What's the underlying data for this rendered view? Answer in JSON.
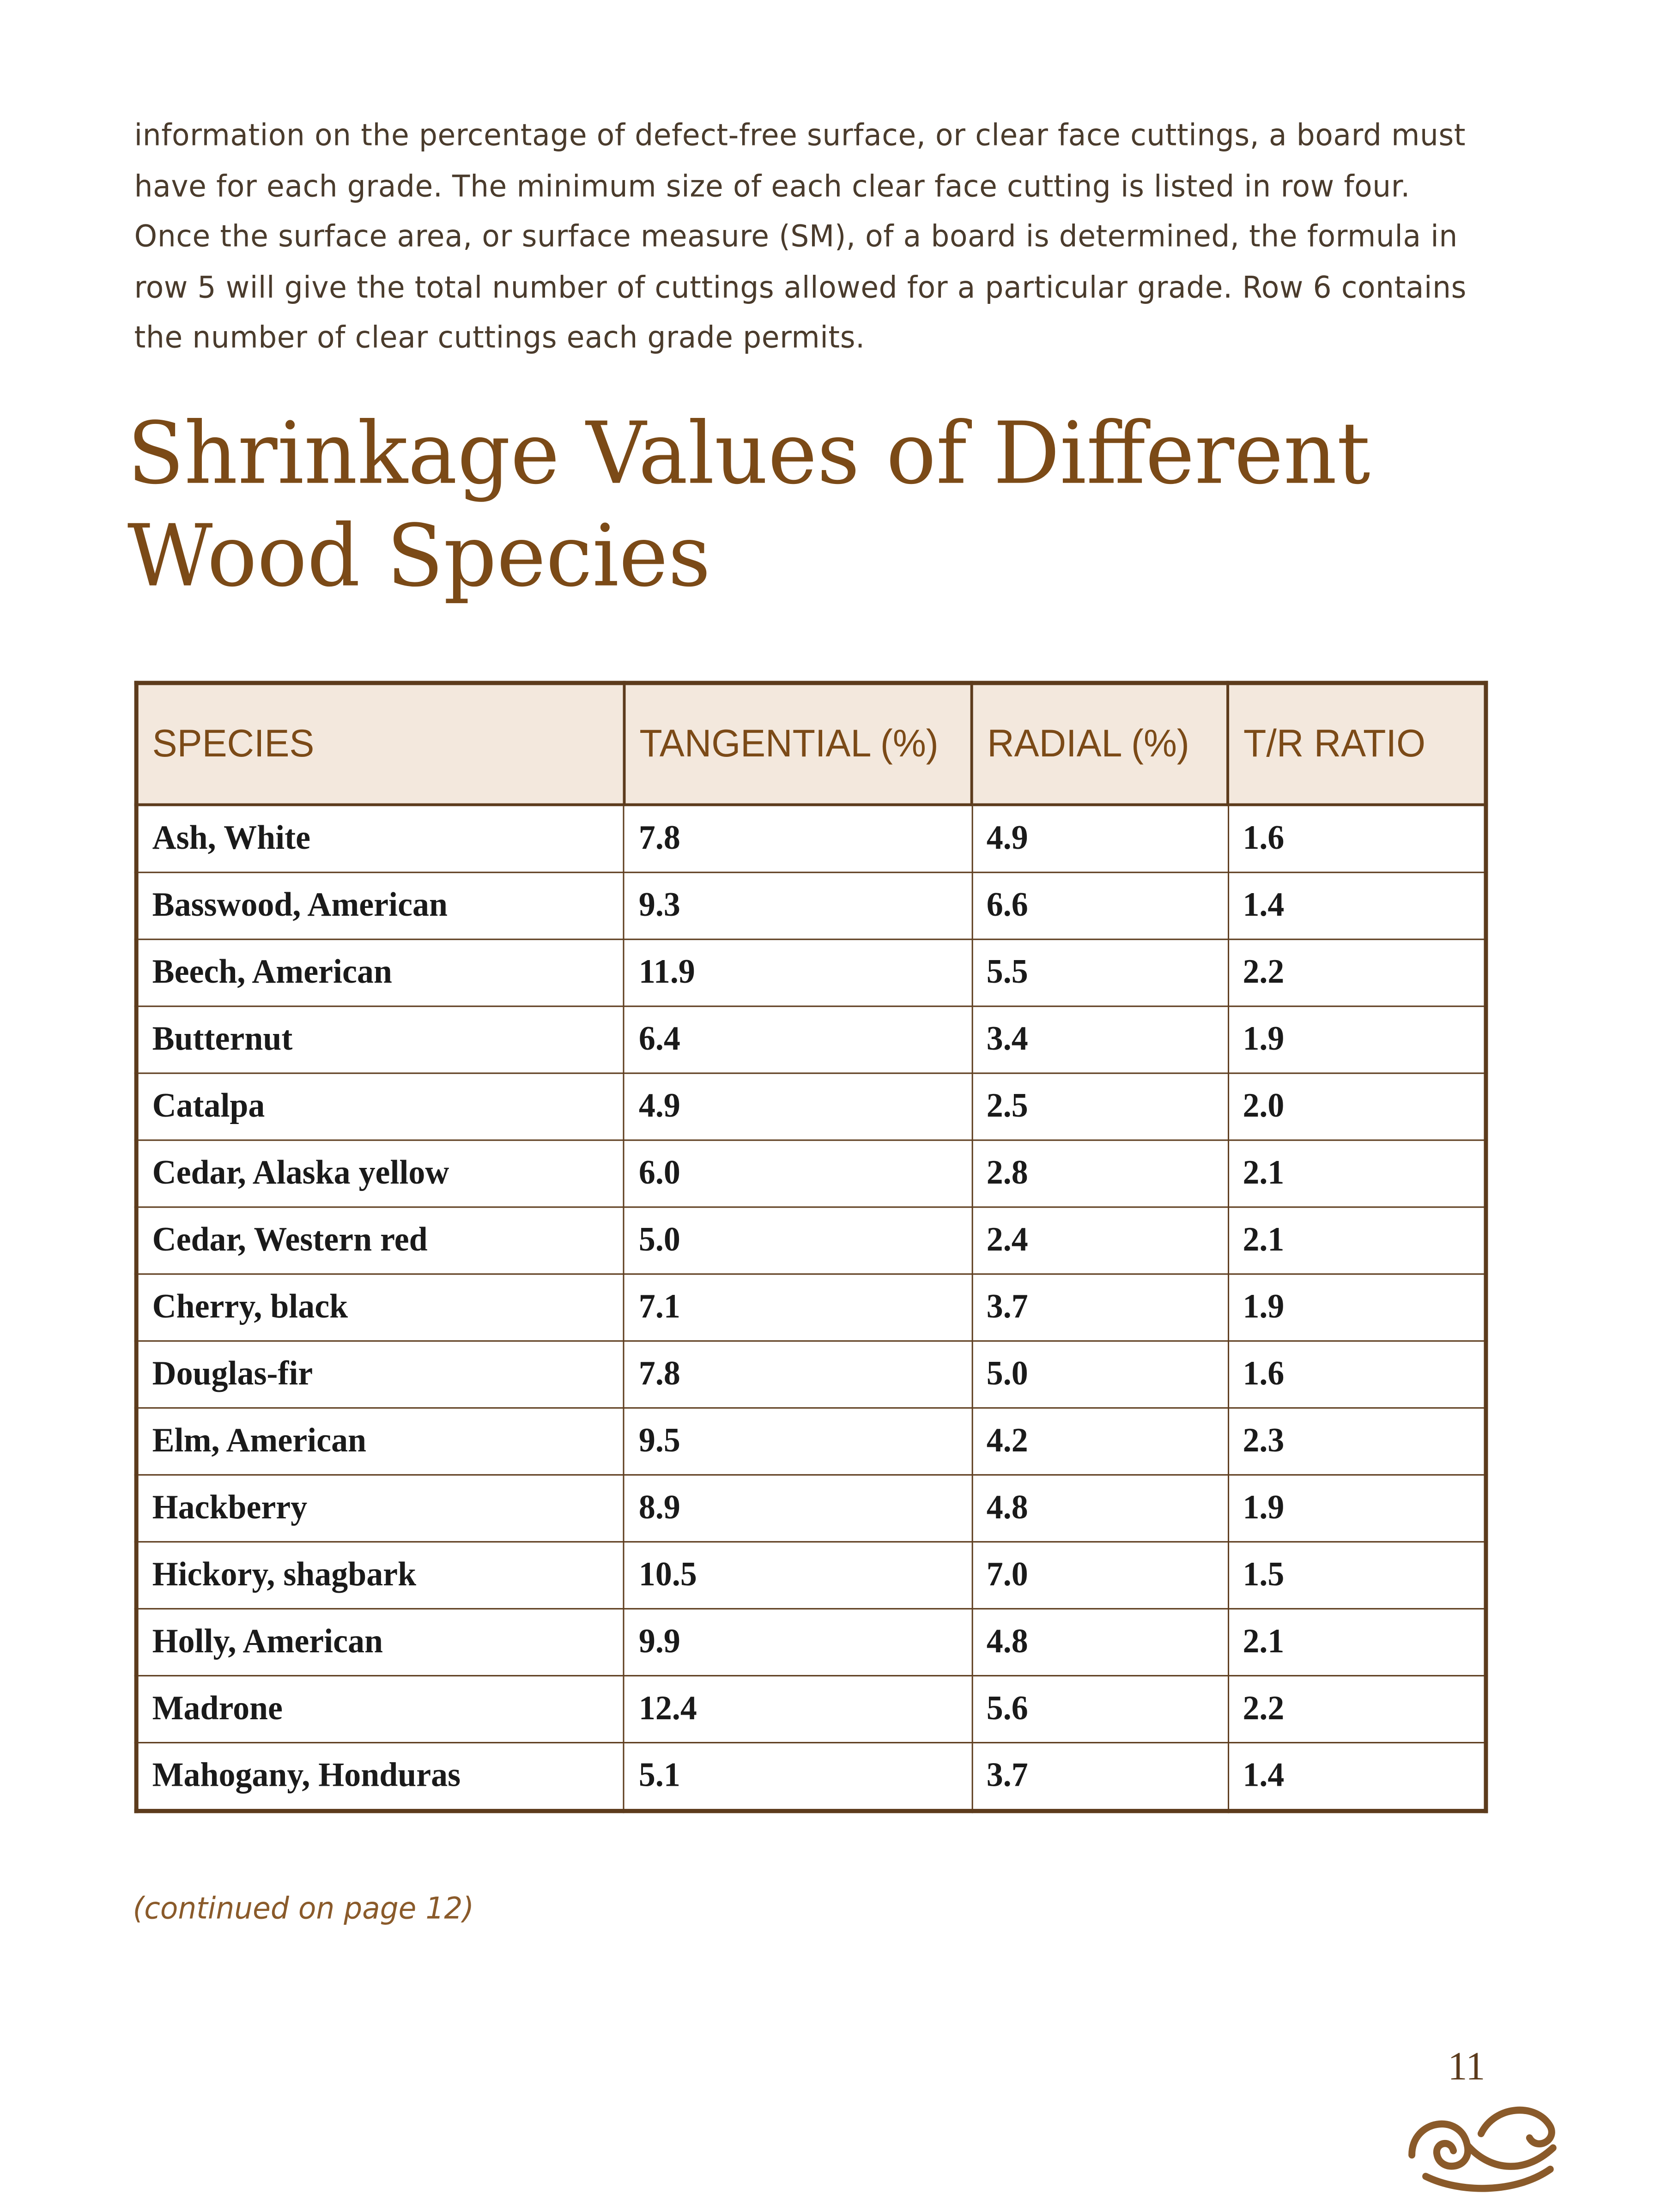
{
  "paragraph": [
    "information on the percentage of defect-free surface, or clear face cuttings, a board must",
    "have for each grade. The minimum size of each clear face cutting is listed in row four.",
    "Once the surface area, or surface measure (SM), of a board is determined, the formula in",
    "row 5 will give the total number of cuttings allowed for a particular grade. Row 6 contains",
    "the number of clear cuttings each grade permits."
  ],
  "title": [
    "Shrinkage Values of Different",
    "Wood Species"
  ],
  "table": {
    "header": [
      "SPECIES",
      "TANGENTIAL (%)",
      "RADIAL (%)",
      "T/R RATIO"
    ],
    "rows": [
      [
        "Ash, White",
        "7.8",
        "4.9",
        "1.6"
      ],
      [
        "Basswood, American",
        "9.3",
        "6.6",
        "1.4"
      ],
      [
        "Beech, American",
        "11.9",
        "5.5",
        "2.2"
      ],
      [
        "Butternut",
        "6.4",
        "3.4",
        "1.9"
      ],
      [
        "Catalpa",
        "4.9",
        "2.5",
        "2.0"
      ],
      [
        "Cedar, Alaska yellow",
        "6.0",
        "2.8",
        "2.1"
      ],
      [
        "Cedar, Western red",
        "5.0",
        "2.4",
        "2.1"
      ],
      [
        "Cherry, black",
        "7.1",
        "3.7",
        "1.9"
      ],
      [
        "Douglas-fir",
        "7.8",
        "5.0",
        "1.6"
      ],
      [
        "Elm, American",
        "9.5",
        "4.2",
        "2.3"
      ],
      [
        "Hackberry",
        "8.9",
        "4.8",
        "1.9"
      ],
      [
        "Hickory, shagbark",
        "10.5",
        "7.0",
        "1.5"
      ],
      [
        "Holly, American",
        "9.9",
        "4.8",
        "2.1"
      ],
      [
        "Madrone",
        "12.4",
        "5.6",
        "2.2"
      ],
      [
        "Mahogany, Honduras",
        "5.1",
        "3.7",
        "1.4"
      ]
    ]
  },
  "note": "(continued on page 12)",
  "page_number": "11"
}
